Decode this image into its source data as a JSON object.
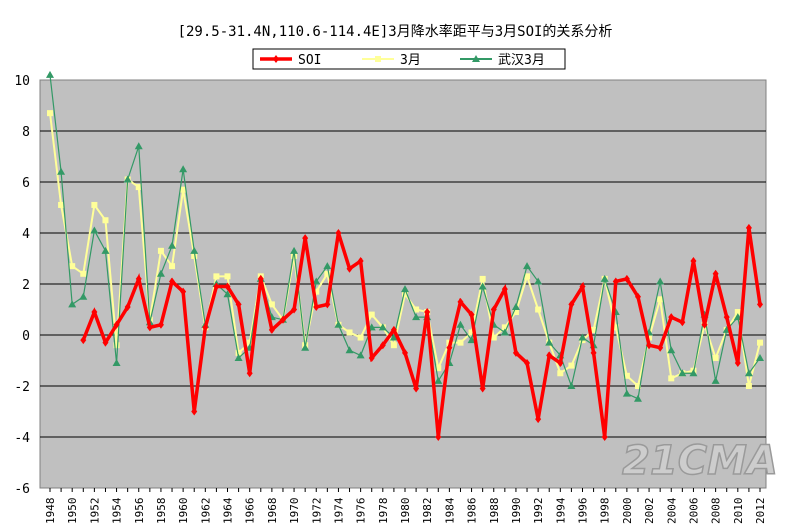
{
  "chart_data": {
    "type": "line",
    "title": "[29.5-31.4N,110.6-114.4E]3月降水率距平与3月SOI的关系分析",
    "xlabel": "",
    "ylabel": "",
    "ylim": [
      -6,
      10
    ],
    "yticks": [
      -6,
      -4,
      -2,
      0,
      2,
      4,
      6,
      8,
      10
    ],
    "xlim": [
      1948,
      2012
    ],
    "grid": true,
    "legend_position": "top-center",
    "x_start": 1948,
    "series": [
      {
        "name": "SOI",
        "color": "#ff0000",
        "marker": "diamond",
        "values": [
          null,
          null,
          null,
          -0.2,
          0.9,
          -0.3,
          0.4,
          1.1,
          2.2,
          0.3,
          0.4,
          2.1,
          1.7,
          -3.0,
          0.3,
          1.9,
          1.9,
          1.2,
          -1.5,
          2.2,
          0.2,
          0.6,
          1.0,
          3.8,
          1.1,
          1.2,
          4.0,
          2.6,
          2.9,
          -0.9,
          -0.4,
          0.2,
          -0.7,
          -2.1,
          0.9,
          -4.0,
          -0.5,
          1.3,
          0.8,
          -2.1,
          1.0,
          1.8,
          -0.7,
          -1.1,
          -3.3,
          -0.8,
          -1.1,
          1.2,
          1.9,
          -0.7,
          -4.0,
          2.1,
          2.2,
          1.5,
          -0.4,
          -0.5,
          0.7,
          0.5,
          2.9,
          0.4,
          2.4,
          0.7,
          -1.1,
          4.2,
          1.2
        ]
      },
      {
        "name": "3月",
        "color": "#ffff99",
        "marker": "square",
        "values": [
          8.7,
          5.1,
          2.7,
          2.4,
          5.1,
          4.5,
          -0.4,
          6.1,
          5.8,
          0.6,
          3.3,
          2.7,
          5.7,
          3.1,
          0.3,
          2.3,
          2.3,
          -0.7,
          -0.3,
          2.3,
          1.2,
          0.6,
          3.1,
          -0.4,
          1.7,
          2.4,
          0.4,
          0.1,
          -0.1,
          0.8,
          0.3,
          -0.4,
          1.6,
          1.0,
          0.9,
          -1.3,
          -0.3,
          -0.3,
          0.1,
          2.2,
          -0.1,
          0.3,
          0.9,
          2.3,
          1.0,
          -0.3,
          -1.5,
          -1.2,
          -0.2,
          0.2,
          2.2,
          0.3,
          -1.6,
          -2.0,
          -0.1,
          1.4,
          -1.7,
          -1.5,
          -1.4,
          0.4,
          -0.9,
          0.2,
          0.9,
          -2.0,
          -0.3
        ]
      },
      {
        "name": "武汉3月",
        "color": "#339966",
        "marker": "triangle",
        "values": [
          10.2,
          6.4,
          1.2,
          1.5,
          4.1,
          3.3,
          -1.1,
          6.1,
          7.4,
          0.5,
          2.4,
          3.5,
          6.5,
          3.3,
          0.4,
          2.0,
          1.6,
          -0.9,
          -0.5,
          2.2,
          0.7,
          0.6,
          3.3,
          -0.5,
          2.1,
          2.7,
          0.4,
          -0.6,
          -0.8,
          0.3,
          0.3,
          -0.1,
          1.8,
          0.7,
          0.7,
          -1.8,
          -1.1,
          0.4,
          -0.2,
          1.9,
          0.4,
          0.1,
          1.1,
          2.7,
          2.1,
          -0.3,
          -0.8,
          -2.0,
          -0.1,
          -0.4,
          2.2,
          0.9,
          -2.3,
          -2.5,
          0.1,
          2.1,
          -0.6,
          -1.5,
          -1.5,
          0.8,
          -1.8,
          0.2,
          0.7,
          -1.5,
          -0.9
        ]
      }
    ]
  },
  "watermark": "21CMA"
}
